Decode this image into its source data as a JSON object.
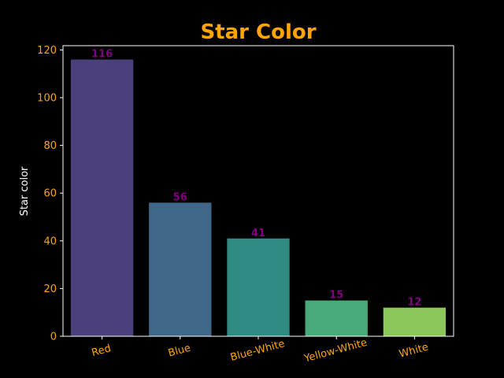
{
  "chart_data": {
    "type": "bar",
    "title": "Star Color",
    "xlabel": "",
    "ylabel": "Star color",
    "categories": [
      "Red",
      "Blue",
      "Blue-White",
      "Yellow-White",
      "White"
    ],
    "values": [
      116,
      56,
      41,
      15,
      12
    ],
    "data_labels": [
      "116",
      "56",
      "41",
      "15",
      "12"
    ],
    "ylim": [
      0,
      121.8
    ],
    "yticks": [
      0,
      20,
      40,
      60,
      80,
      100,
      120
    ],
    "ytick_labels": [
      "0",
      "20",
      "40",
      "60",
      "80",
      "100",
      "120"
    ],
    "x_tick_rotation_deg": -15,
    "grid": false,
    "legend": "none",
    "bar_colors": [
      "#4b3f7c",
      "#3e678a",
      "#2f8a83",
      "#48aa79",
      "#8dc65b"
    ]
  },
  "colors": {
    "background": "#000000",
    "title": "#ffa500",
    "tick_labels": "#ffa500",
    "axis_label": "#ffffff",
    "spines": "#ffffff",
    "data_labels": "#800080"
  }
}
